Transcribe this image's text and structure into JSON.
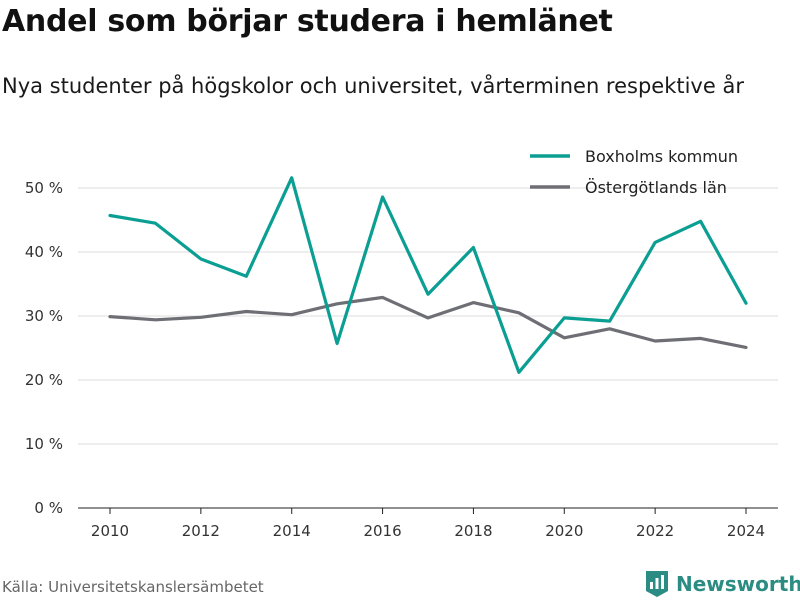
{
  "header": {
    "title": "Andel som börjar studera i hemlänet",
    "subtitle": "Nya studenter på högskolor och universitet, vårterminen respektive år"
  },
  "footer": {
    "source": "Källa: Universitetskanslersämbetet",
    "brand": "Newsworthy",
    "brand_icon": "newsworthy-logo-icon"
  },
  "chart_data": {
    "type": "line",
    "x": [
      2010,
      2011,
      2012,
      2013,
      2014,
      2015,
      2016,
      2017,
      2018,
      2019,
      2020,
      2021,
      2022,
      2023,
      2024
    ],
    "series": [
      {
        "name": "Boxholms kommun",
        "color": "#0b9e92",
        "values": [
          45.7,
          44.5,
          38.9,
          36.2,
          51.6,
          25.7,
          48.6,
          33.4,
          40.7,
          21.2,
          29.7,
          29.2,
          41.5,
          44.8,
          32.0
        ]
      },
      {
        "name": "Östergötlands län",
        "color": "#6e6e75",
        "values": [
          29.9,
          29.4,
          29.8,
          30.7,
          30.2,
          31.9,
          32.9,
          29.7,
          32.1,
          30.5,
          26.6,
          28.0,
          26.1,
          26.5,
          25.1
        ]
      }
    ],
    "x_ticks": [
      "2010",
      "2012",
      "2014",
      "2016",
      "2018",
      "2020",
      "2022",
      "2024"
    ],
    "y_ticks": [
      "0 %",
      "10 %",
      "20 %",
      "30 %",
      "40 %",
      "50 %"
    ],
    "y_tick_values": [
      0,
      10,
      20,
      30,
      40,
      50
    ],
    "x_tick_values": [
      2010,
      2012,
      2014,
      2016,
      2018,
      2020,
      2022,
      2024
    ],
    "ylim": [
      0,
      50
    ],
    "xlim": [
      2010,
      2024
    ],
    "grid": true,
    "legend_position": "top-right"
  }
}
